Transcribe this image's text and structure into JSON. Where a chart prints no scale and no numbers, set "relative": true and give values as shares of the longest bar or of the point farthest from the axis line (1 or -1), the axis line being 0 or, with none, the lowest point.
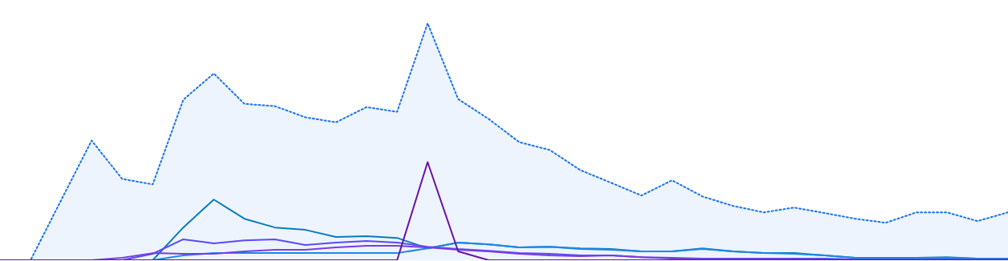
{
  "chart_data": {
    "type": "line",
    "relative": true,
    "legend": false,
    "marker": "none",
    "categories": [
      null,
      null,
      null,
      null,
      null,
      null,
      null,
      null,
      null,
      null,
      null,
      null,
      null,
      null,
      null,
      null,
      null,
      null,
      null,
      null,
      null,
      null,
      null,
      null,
      null,
      null,
      null,
      null,
      null,
      null,
      null,
      null,
      null,
      null
    ],
    "series": [
      {
        "type": "area",
        "color": "#1a73e8",
        "line_style": "dotted",
        "values": [
          0,
          0,
          0.253,
          0.505,
          0.343,
          0.32,
          0.677,
          0.788,
          0.66,
          0.65,
          0.603,
          0.582,
          0.646,
          0.626,
          1,
          0.68,
          0.596,
          0.498,
          0.465,
          0.38,
          0.327,
          0.273,
          0.337,
          0.269,
          0.229,
          0.202,
          0.222,
          0.199,
          0.175,
          0.158,
          0.202,
          0.202,
          0.165,
          0.202
        ]
      },
      {
        "type": "line",
        "color": "#0b7bbd",
        "line_style": "solid",
        "values": [
          null,
          null,
          null,
          null,
          0,
          0,
          0.138,
          0.256,
          0.175,
          0.138,
          0.128,
          0.098,
          0.101,
          0.094,
          0.05,
          0.074,
          0.067,
          0.054,
          0.057,
          0.05,
          0.047,
          0.037,
          0.037,
          0.05,
          0.037,
          0.03,
          0.03,
          0.02,
          0.01,
          0.01,
          0.01,
          0.013,
          0.007,
          0.007
        ]
      },
      {
        "type": "line",
        "color": "#1e88e5",
        "line_style": "solid",
        "values": [
          null,
          null,
          null,
          null,
          0,
          0,
          0.02,
          0.03,
          0.03,
          0.03,
          0.03,
          0.03,
          0.03,
          0.03,
          0.05,
          0.074,
          0.067,
          0.054,
          0.057,
          0.047,
          0.044,
          0.037,
          0.037,
          0.047,
          0.037,
          0.03,
          0.027,
          0.02,
          0.01,
          0.01,
          0.01,
          0.01,
          0.007,
          0.007
        ]
      },
      {
        "type": "line",
        "color": "#5a4af5",
        "line_style": "solid",
        "values": [
          null,
          null,
          null,
          null,
          0,
          0.027,
          0.088,
          0.071,
          0.084,
          0.088,
          0.064,
          0.074,
          0.081,
          0.074,
          0.057,
          0.047,
          0.04,
          0.03,
          0.027,
          0.02,
          0.02,
          0.013,
          0.01,
          0.007,
          0.007,
          0.007,
          0.007,
          0.007,
          0.003,
          0.003,
          0.003,
          0.003,
          0.003,
          0.003
        ]
      },
      {
        "type": "line",
        "color": "#7e3ae0",
        "line_style": "solid",
        "values": [
          null,
          null,
          null,
          0,
          0.01,
          0.03,
          0.027,
          0.027,
          0.037,
          0.044,
          0.044,
          0.054,
          0.061,
          0.061,
          0.054,
          0.044,
          0.037,
          0.027,
          0.02,
          0.017,
          0.02,
          0.013,
          0.007,
          0.003,
          0.003,
          0.003,
          0.003,
          0,
          0,
          0,
          0,
          0,
          0,
          0
        ]
      },
      {
        "type": "line",
        "color": "#6e0fa8",
        "line_style": "solid",
        "values": [
          0,
          0,
          0,
          0,
          0,
          0,
          0,
          0,
          0,
          0,
          0,
          0,
          0,
          0,
          0.414,
          0.037,
          0,
          0,
          0,
          0,
          0,
          0,
          0,
          0,
          0,
          0,
          0,
          0,
          0,
          0,
          0,
          0,
          0,
          0
        ]
      }
    ]
  }
}
